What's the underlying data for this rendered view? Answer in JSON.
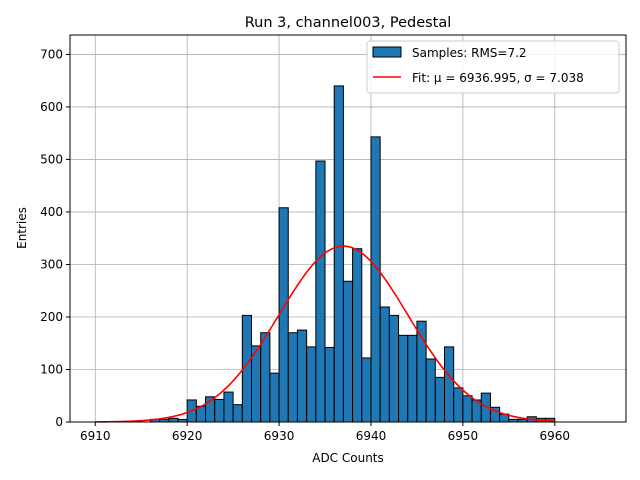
{
  "chart_data": {
    "type": "bar",
    "title": "Run 3, channel003, Pedestal",
    "xlabel": "ADC Counts",
    "ylabel": "Entries",
    "xlim": [
      6907.25,
      6967.75
    ],
    "ylim": [
      0,
      737
    ],
    "xticks": [
      6910,
      6920,
      6930,
      6940,
      6950,
      6960
    ],
    "yticks": [
      0,
      100,
      200,
      300,
      400,
      500,
      600,
      700
    ],
    "grid": true,
    "bin_width": 1,
    "bin_start": 6910,
    "values": [
      0,
      0,
      0,
      0,
      0,
      0,
      5,
      5,
      7,
      5,
      42,
      30,
      48,
      43,
      57,
      33,
      203,
      145,
      170,
      93,
      408,
      170,
      175,
      143,
      497,
      142,
      640,
      268,
      330,
      122,
      543,
      219,
      203,
      165,
      165,
      192,
      120,
      85,
      143,
      65,
      50,
      42,
      55,
      28,
      15,
      5,
      5,
      10,
      7,
      7,
      0,
      0,
      0,
      0,
      0,
      0
    ],
    "fit": {
      "mu": 6936.995,
      "sigma": 7.038,
      "amplitude": 335,
      "x_range": [
        6910,
        6960
      ]
    },
    "legend": {
      "position": "top-right",
      "hist_label": "Samples: RMS=7.2",
      "fit_label": "Fit: μ = 6936.995, σ = 7.038"
    },
    "colors": {
      "bar": "#1f77b4",
      "bar_edge": "#000000",
      "fit": "#ff0000",
      "grid": "#b0b0b0"
    }
  }
}
